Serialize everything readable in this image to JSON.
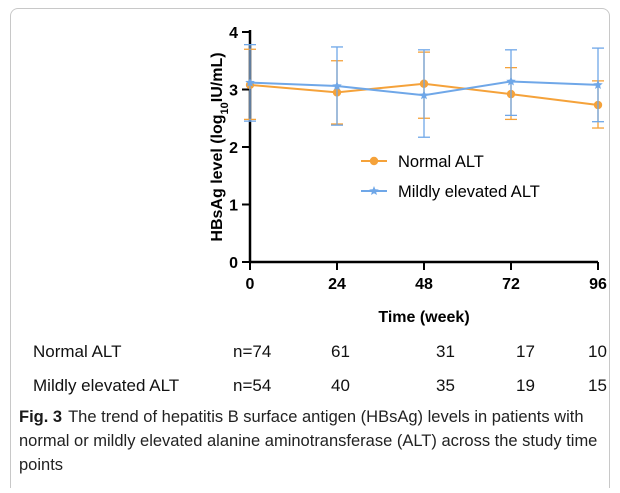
{
  "chart_data": {
    "type": "line",
    "title": "",
    "xlabel": "Time (week)",
    "ylabel_main": "HBsAg level  (log",
    "ylabel_sub": "10",
    "ylabel_tail": "IU/mL)",
    "x": [
      0,
      24,
      48,
      72,
      96
    ],
    "xticks": [
      "0",
      "24",
      "48",
      "72",
      "96"
    ],
    "yticks": [
      "0",
      "1",
      "2",
      "3",
      "4"
    ],
    "xlim": [
      0,
      96
    ],
    "ylim": [
      0,
      4
    ],
    "grid": false,
    "legend_position": "center-right",
    "series": [
      {
        "name": "Normal ALT",
        "color": "#f5a23a",
        "marker": "circle",
        "values": [
          3.08,
          2.95,
          3.1,
          2.92,
          2.73
        ],
        "err_upper": [
          3.7,
          3.5,
          3.65,
          3.38,
          3.15
        ],
        "err_lower": [
          2.48,
          2.4,
          2.5,
          2.48,
          2.33
        ]
      },
      {
        "name": "Mildly elevated ALT",
        "color": "#6fa7e8",
        "marker": "star",
        "values": [
          3.12,
          3.06,
          2.9,
          3.14,
          3.08
        ],
        "err_upper": [
          3.78,
          3.74,
          3.69,
          3.69,
          3.72
        ],
        "err_lower": [
          2.45,
          2.38,
          2.17,
          2.55,
          2.44
        ]
      }
    ]
  },
  "table": {
    "rows": [
      {
        "label": "Normal ALT",
        "counts": [
          "n=74",
          "61",
          "31",
          "17",
          "10"
        ]
      },
      {
        "label": "Mildly elevated ALT",
        "counts": [
          "n=54",
          "40",
          "35",
          "19",
          "15"
        ]
      }
    ]
  },
  "caption": {
    "fig_label": "Fig. 3",
    "text": "The trend of hepatitis B surface antigen (HBsAg) levels in patients with normal or mildly elevated alanine aminotransferase (ALT) across the study time points"
  }
}
